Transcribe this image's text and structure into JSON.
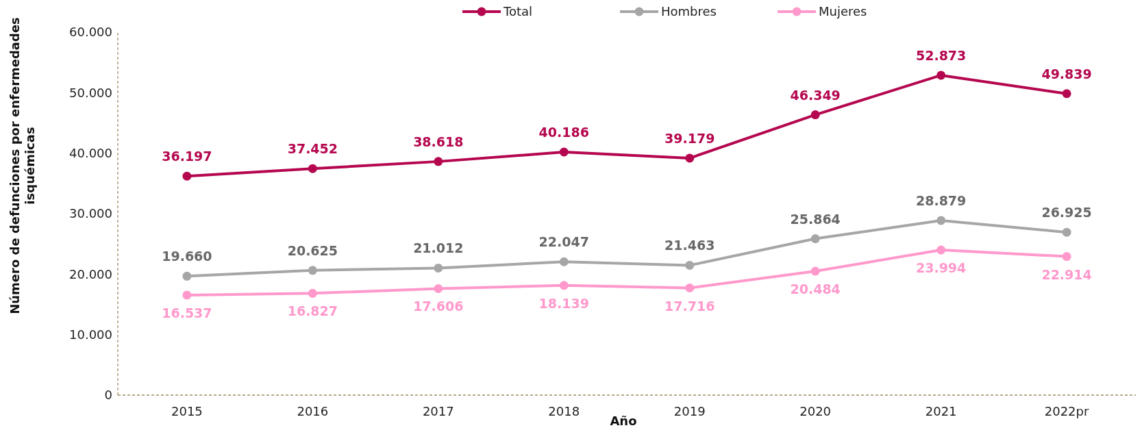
{
  "chart_data": {
    "type": "line",
    "xlabel": "Año",
    "ylabel": "Número de defunciones por enfermedades isquémicas",
    "categories": [
      "2015",
      "2016",
      "2017",
      "2018",
      "2019",
      "2020",
      "2021",
      "2022pr"
    ],
    "ylim": [
      0,
      60000
    ],
    "yticks": [
      0,
      {
        "value": 10000,
        "label": "10.000"
      },
      {
        "value": 20000,
        "label": "20.000"
      },
      {
        "value": 30000,
        "label": "30.000"
      },
      {
        "value": 40000,
        "label": "40.000"
      },
      {
        "value": 50000,
        "label": "50.000"
      },
      {
        "value": 60000,
        "label": "60.000"
      }
    ],
    "series": [
      {
        "name": "Total",
        "color": "#b5074f",
        "values": [
          36197,
          37452,
          38618,
          40186,
          39179,
          46349,
          52873,
          49839
        ],
        "value_labels": [
          "36.197",
          "37.452",
          "38.618",
          "40.186",
          "39.179",
          "46.349",
          "52.873",
          "49.839"
        ]
      },
      {
        "name": "Hombres",
        "color": "#a6a6a6",
        "values": [
          19660,
          20625,
          21012,
          22047,
          21463,
          25864,
          28879,
          26925
        ],
        "value_labels": [
          "19.660",
          "20.625",
          "21.012",
          "22.047",
          "21.463",
          "25.864",
          "28.879",
          "26.925"
        ]
      },
      {
        "name": "Mujeres",
        "color": "#ff99cc",
        "values": [
          16537,
          16827,
          17606,
          18139,
          17716,
          20484,
          23994,
          22914
        ],
        "value_labels": [
          "16.537",
          "16.827",
          "17.606",
          "18.139",
          "17.716",
          "20.484",
          "23.994",
          "22.914"
        ]
      }
    ],
    "legend": "top",
    "marker": "circle",
    "line_style": "solid",
    "grid": false
  }
}
